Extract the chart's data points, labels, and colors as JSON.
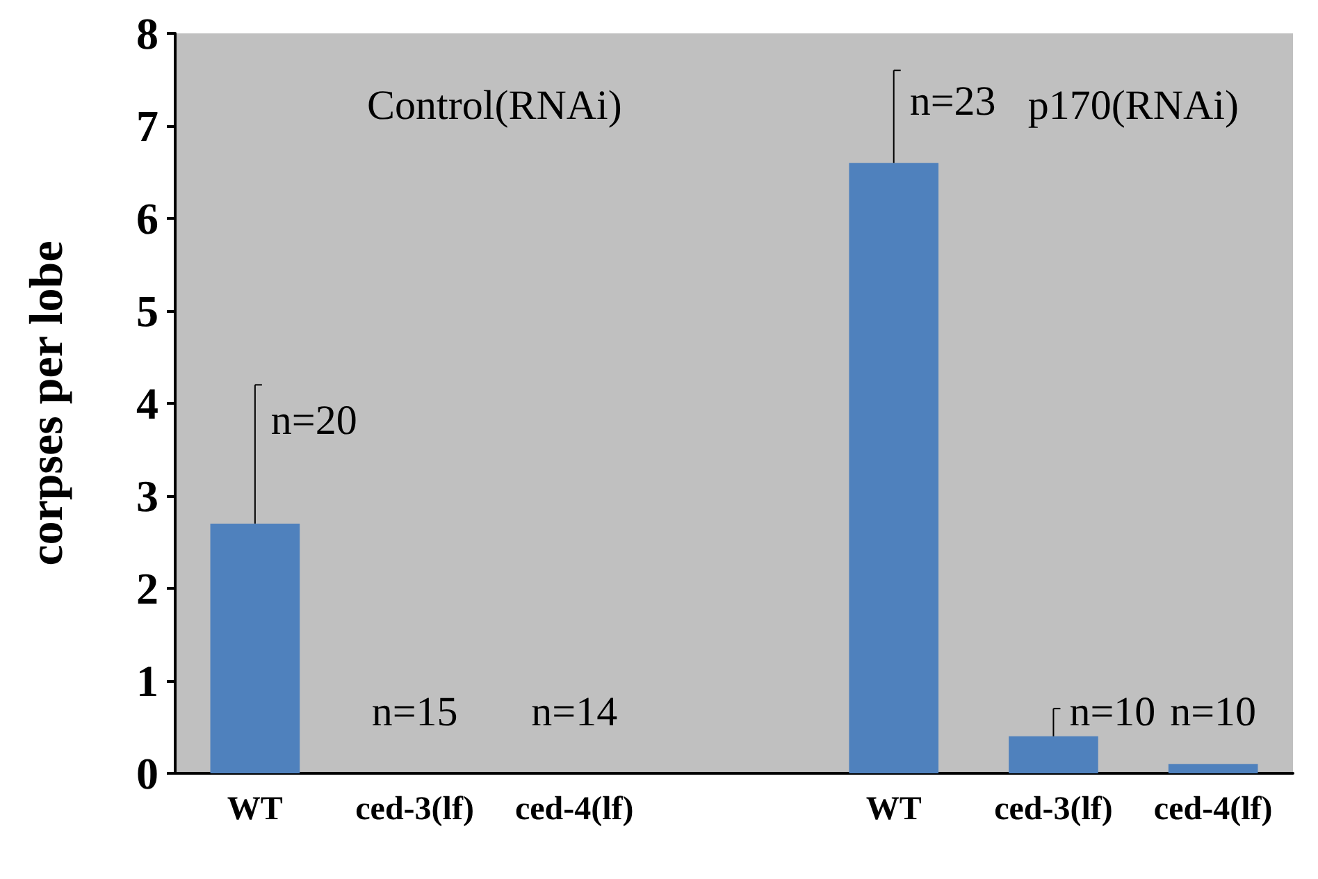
{
  "chart_data": {
    "type": "bar",
    "ylabel": "corpses per lobe",
    "categories": [
      "WT",
      "ced-3(lf)",
      "ced-4(lf)",
      null,
      "WT",
      "ced-3(lf)",
      "ced-4(lf)"
    ],
    "values": [
      2.7,
      0,
      0,
      null,
      6.6,
      0.4,
      0.1
    ],
    "errors": [
      [
        2.7,
        4.2
      ],
      null,
      null,
      null,
      [
        6.6,
        7.6
      ],
      [
        0.4,
        0.7
      ],
      null
    ],
    "color": "#4f81bd",
    "annotations": [
      "Control(RNAi)",
      "p170(RNAi)",
      "n=20",
      "n=15",
      "n=14",
      "n=23",
      "n=10",
      "n=10"
    ],
    "ylim": [
      0,
      8
    ],
    "yticks": [
      0,
      1,
      2,
      3,
      4,
      5,
      6,
      7,
      8
    ],
    "grid": false
  }
}
